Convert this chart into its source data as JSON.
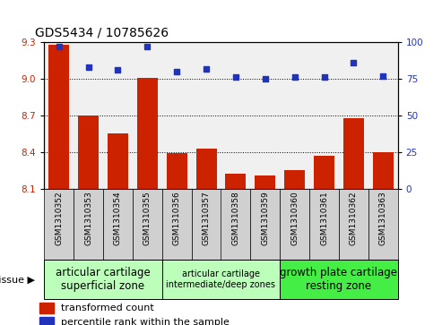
{
  "title": "GDS5434 / 10785626",
  "samples": [
    "GSM1310352",
    "GSM1310353",
    "GSM1310354",
    "GSM1310355",
    "GSM1310356",
    "GSM1310357",
    "GSM1310358",
    "GSM1310359",
    "GSM1310360",
    "GSM1310361",
    "GSM1310362",
    "GSM1310363"
  ],
  "bar_values": [
    9.28,
    8.7,
    8.55,
    9.01,
    8.39,
    8.43,
    8.22,
    8.21,
    8.25,
    8.37,
    8.68,
    8.4
  ],
  "dot_values": [
    97,
    83,
    81,
    97,
    80,
    82,
    76,
    75,
    76,
    76,
    86,
    77
  ],
  "bar_color": "#cc2200",
  "dot_color": "#2233bb",
  "ylim_left": [
    8.1,
    9.3
  ],
  "ylim_right": [
    0,
    100
  ],
  "yticks_left": [
    8.1,
    8.4,
    8.7,
    9.0,
    9.3
  ],
  "yticks_right": [
    0,
    25,
    50,
    75,
    100
  ],
  "group_starts": [
    0,
    4,
    8
  ],
  "group_ends": [
    4,
    8,
    12
  ],
  "group_labels": [
    "articular cartilage\nsuperficial zone",
    "articular cartilage\nintermediate/deep zones",
    "growth plate cartilage\nresting zone"
  ],
  "group_colors": [
    "#bbffbb",
    "#bbffbb",
    "#44ee44"
  ],
  "group_fontsizes": [
    8.5,
    7.0,
    8.5
  ],
  "tissue_label": "tissue",
  "legend_bar_label": "transformed count",
  "legend_dot_label": "percentile rank within the sample",
  "bar_width": 0.7,
  "base_value": 8.1,
  "bg_color": "#e8e8e8",
  "cell_color": "#d0d0d0"
}
